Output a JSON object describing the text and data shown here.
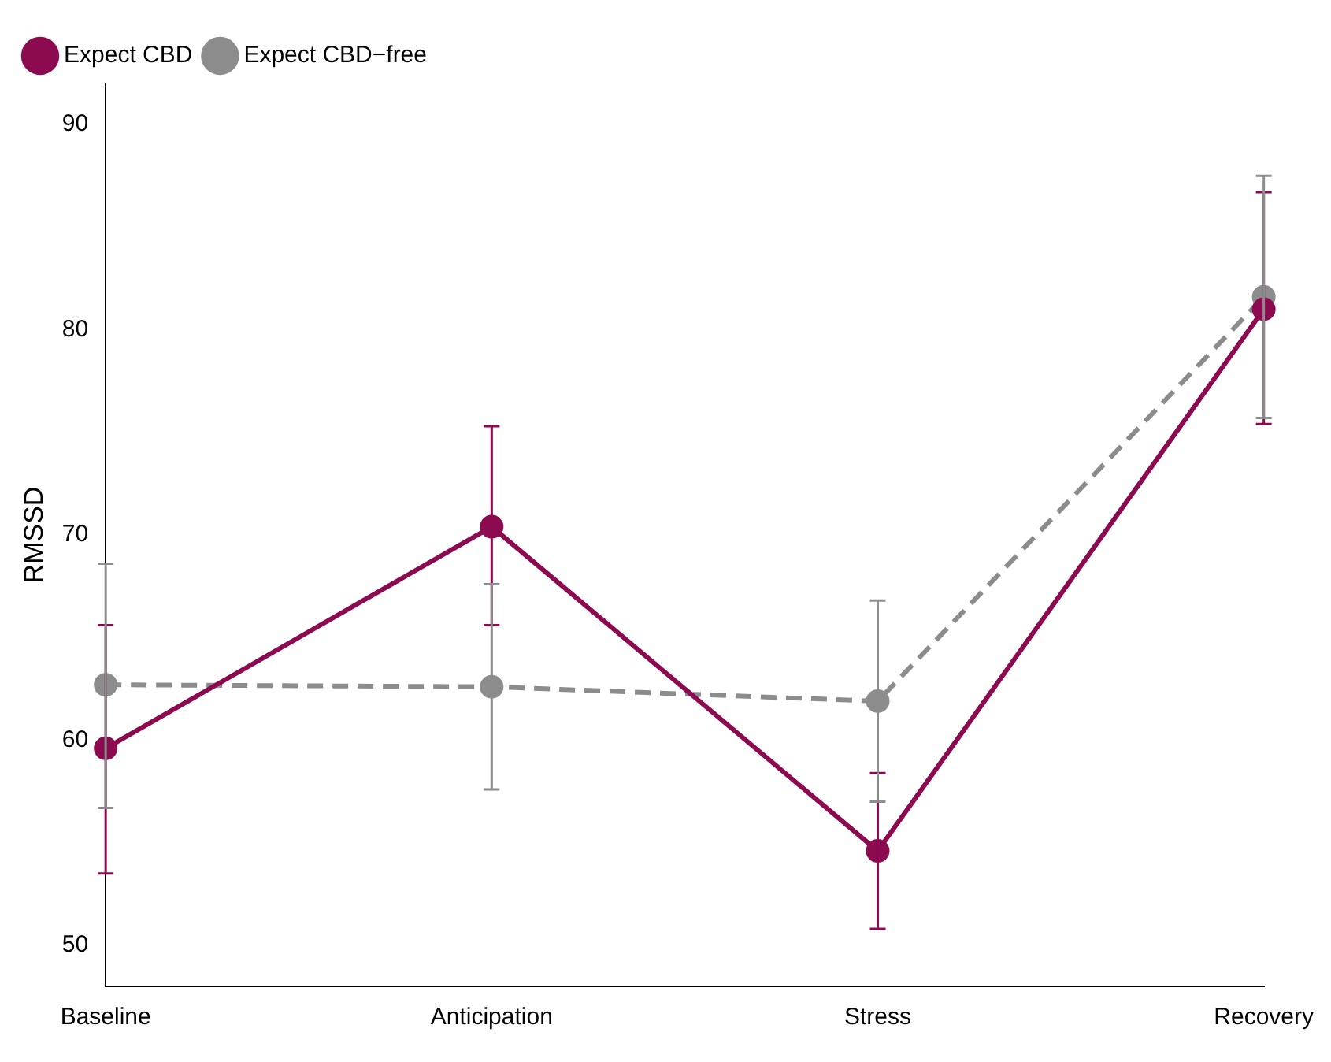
{
  "chart_data": {
    "type": "line",
    "ylabel": "RMSSD",
    "categories": [
      "Baseline",
      "Anticipation",
      "Stress",
      "Recovery"
    ],
    "series": [
      {
        "name": "Expect CBD",
        "color": "#8b0a50",
        "line_style": "solid",
        "values": [
          59.6,
          70.4,
          54.6,
          81.0
        ],
        "errors": [
          [
            53.5,
            65.6
          ],
          [
            65.6,
            75.3
          ],
          [
            50.8,
            58.4
          ],
          [
            75.4,
            86.7
          ]
        ]
      },
      {
        "name": "Expect CBD−free",
        "color": "#8c8c8c",
        "line_style": "dashed",
        "values": [
          62.7,
          62.6,
          61.9,
          81.6
        ],
        "errors": [
          [
            56.7,
            68.6
          ],
          [
            57.6,
            67.6
          ],
          [
            57.0,
            66.8
          ],
          [
            75.7,
            87.5
          ]
        ]
      }
    ],
    "ylim": [
      48,
      92
    ],
    "yticks": [
      50,
      60,
      70,
      80,
      90
    ],
    "grid": false,
    "legend": "top left",
    "marker": "circle"
  }
}
